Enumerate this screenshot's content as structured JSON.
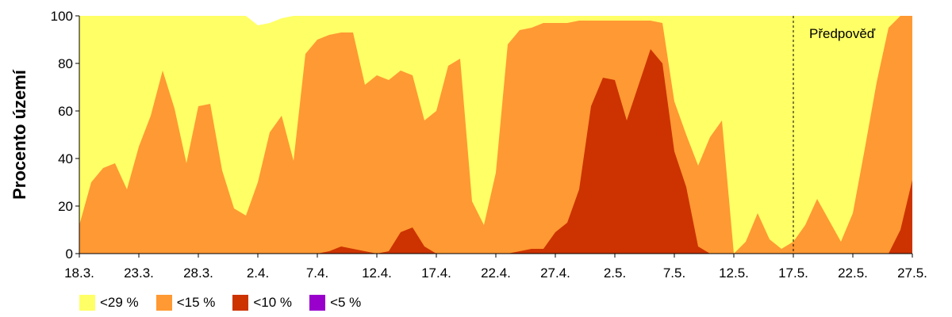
{
  "chart_data": {
    "type": "area",
    "ylabel": "Procento území",
    "ylim": [
      0,
      100
    ],
    "y_ticks": [
      "0",
      "20",
      "40",
      "60",
      "80",
      "100"
    ],
    "x_tick_labels": [
      "18.3.",
      "23.3.",
      "28.3.",
      "2.4.",
      "7.4.",
      "12.4.",
      "17.4.",
      "22.4.",
      "27.4.",
      "2.5.",
      "7.5.",
      "12.5.",
      "17.5.",
      "22.5.",
      "27.5."
    ],
    "stacked": false,
    "annotation": {
      "text": "Předpověď",
      "at_day": 14.5
    },
    "x": [
      18.3,
      19.3,
      20.3,
      21.3,
      22.3,
      23.3,
      24.3,
      25.3,
      26.3,
      27.3,
      28.3,
      29.3,
      30.3,
      31.3,
      1.4,
      2.4,
      3.4,
      4.4,
      5.4,
      6.4,
      7.4,
      8.4,
      9.4,
      10.4,
      11.4,
      12.4,
      13.4,
      14.4,
      15.4,
      16.4,
      17.4,
      18.4,
      19.4,
      20.4,
      21.4,
      22.4,
      23.4,
      24.4,
      25.4,
      26.4,
      27.4,
      28.4,
      29.4,
      30.4,
      1.5,
      2.5,
      3.5,
      4.5,
      5.5,
      6.5,
      7.5,
      8.5,
      9.5,
      10.5,
      11.5,
      12.5,
      13.5,
      14.5,
      15.5,
      16.5,
      17.5,
      18.5,
      19.5,
      20.5,
      21.5,
      22.5,
      23.5,
      24.5,
      25.5,
      26.5,
      27.5
    ],
    "series": [
      {
        "name": "<5 %",
        "color": "#9900cc",
        "values": [
          0,
          0,
          0,
          0,
          0,
          0,
          0,
          0,
          0,
          0,
          0,
          0,
          0,
          0,
          0,
          0,
          0,
          0,
          0,
          0,
          0,
          0,
          0,
          0,
          0,
          0,
          0,
          0,
          0,
          0,
          0,
          0,
          0,
          0,
          0,
          0,
          0,
          0,
          0,
          0,
          0,
          0,
          0,
          0,
          0,
          0,
          0,
          0,
          0,
          0,
          0,
          0,
          0,
          0,
          0,
          0,
          0,
          0,
          0,
          0,
          0,
          0,
          0,
          0,
          0,
          0,
          0,
          0,
          0,
          0,
          0
        ]
      },
      {
        "name": "<29 %",
        "color": "#ffff66",
        "values": [
          100,
          100,
          100,
          100,
          100,
          100,
          100,
          100,
          100,
          100,
          100,
          100,
          100,
          100,
          100,
          96,
          97,
          99,
          100,
          100,
          100,
          100,
          100,
          100,
          100,
          100,
          100,
          100,
          100,
          100,
          100,
          100,
          100,
          100,
          100,
          100,
          100,
          100,
          100,
          100,
          100,
          100,
          100,
          100,
          100,
          100,
          100,
          100,
          100,
          100,
          100,
          100,
          100,
          100,
          100,
          100,
          100,
          100,
          100,
          100,
          100,
          100,
          100,
          100,
          100,
          100,
          100,
          100,
          100,
          100,
          100
        ]
      },
      {
        "name": "<15 %",
        "color": "#ff9933",
        "values": [
          12,
          30,
          36,
          38,
          27,
          45,
          58,
          77,
          61,
          38,
          62,
          63,
          35,
          19,
          16,
          30,
          51,
          58,
          39,
          84,
          90,
          92,
          93,
          93,
          71,
          75,
          73,
          77,
          75,
          56,
          60,
          79,
          82,
          22,
          12,
          34,
          88,
          94,
          95,
          97,
          97,
          97,
          98,
          98,
          98,
          98,
          98,
          98,
          98,
          97,
          64,
          50,
          37,
          49,
          56,
          0,
          5,
          17,
          6,
          2,
          5,
          12,
          23,
          14,
          5,
          17,
          44,
          72,
          95,
          100,
          100
        ]
      },
      {
        "name": "<10 %",
        "color": "#cc3300",
        "values": [
          0,
          0,
          0,
          0,
          0,
          0,
          0,
          0,
          0,
          0,
          0,
          0,
          0,
          0,
          0,
          0,
          0,
          0,
          0,
          0,
          0,
          1,
          3,
          2,
          1,
          0,
          1,
          9,
          11,
          3,
          0,
          0,
          0,
          0,
          0,
          0,
          0,
          1,
          2,
          2,
          9,
          13,
          27,
          62,
          74,
          73,
          56,
          71,
          86,
          80,
          43,
          28,
          3,
          0,
          0,
          0,
          0,
          0,
          0,
          0,
          0,
          0,
          0,
          0,
          0,
          0,
          0,
          0,
          0,
          10,
          31
        ]
      }
    ],
    "legend": [
      "<29 %",
      "<15 %",
      "<10 %",
      "<5 %"
    ],
    "legend_position": "bottom-left",
    "grid": false
  }
}
